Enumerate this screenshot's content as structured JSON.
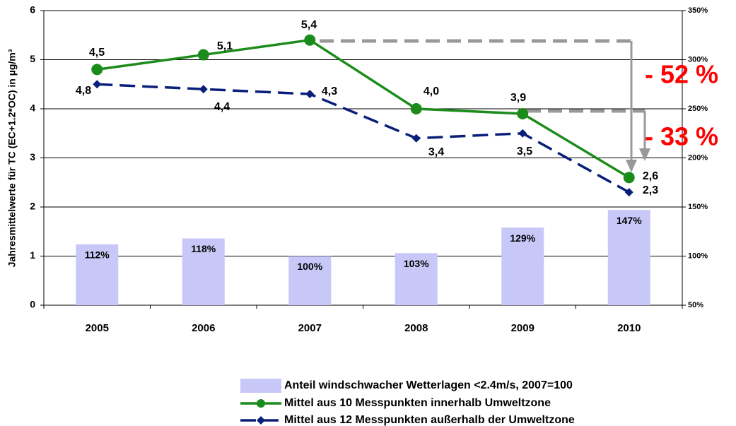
{
  "chart_data": {
    "type": "bar-line",
    "y_label": "Jahresmittelwerte für TC (EC+1.2*OC) in µg/m³",
    "categories": [
      "2005",
      "2006",
      "2007",
      "2008",
      "2009",
      "2010"
    ],
    "ylim": [
      0,
      6
    ],
    "yticks": [
      0,
      1,
      2,
      3,
      4,
      5,
      6
    ],
    "y2lim": [
      50,
      350
    ],
    "y2ticks": [
      {
        "value": 50,
        "label": "50%"
      },
      {
        "value": 100,
        "label": "100%"
      },
      {
        "value": 150,
        "label": "150%"
      },
      {
        "value": 200,
        "label": "200%"
      },
      {
        "value": 250,
        "label": "250%"
      },
      {
        "value": 300,
        "label": "300%"
      },
      {
        "value": 350,
        "label": "350%"
      }
    ],
    "grid": true,
    "series": [
      {
        "name": "Anteil windschwacher Wetterlagen <2.4m/s, 2007=100",
        "type": "bar",
        "axis": "y2",
        "color": "#c8c8f8",
        "values": [
          112,
          118,
          100,
          103,
          129,
          147
        ],
        "value_labels": [
          "112%",
          "118%",
          "100%",
          "103%",
          "129%",
          "147%"
        ]
      },
      {
        "name": "Mittel aus 10 Messpunkten innerhalb Umweltzone",
        "type": "line",
        "color": "#1b8c1b",
        "dash": false,
        "marker": "circle",
        "values": [
          4.8,
          5.1,
          5.4,
          4.0,
          3.9,
          2.6
        ],
        "value_labels": [
          "4,8",
          "5,1",
          "5,4",
          "4,0",
          "3,9",
          "2,6"
        ]
      },
      {
        "name": "Mittel aus 12 Messpunkten außerhalb der Umweltzone",
        "type": "line",
        "color": "#0a1f7a",
        "dash": true,
        "marker": "diamond",
        "values": [
          4.5,
          4.4,
          4.3,
          3.4,
          3.5,
          2.3
        ],
        "value_labels": [
          "4,5",
          "4,4",
          "4,3",
          "3,4",
          "3,5",
          "2,3"
        ]
      }
    ],
    "annotations": [
      "- 52 %",
      "- 33 %"
    ]
  }
}
